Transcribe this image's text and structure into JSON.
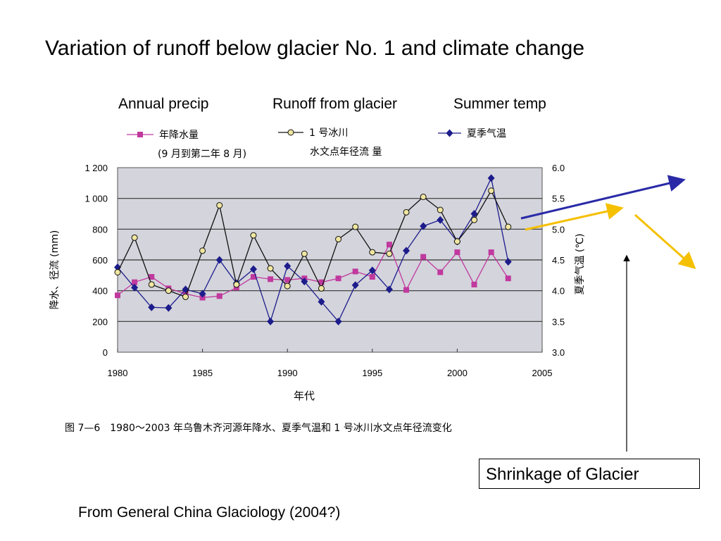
{
  "slide": {
    "title": "Variation of runoff below glacier No. 1 and climate change",
    "captions": [
      "Annual precip",
      "Runoff from glacier",
      "Summer temp"
    ],
    "box_label": "Shrinkage of Glacier",
    "source": "From General China Glaciology (2004?)"
  },
  "colors": {
    "plot_bg": "#d4d4dc",
    "precip": "#c0399e",
    "runoff_fill": "#f0e6a0",
    "runoff_line": "#111111",
    "temp": "#1c1c8c",
    "arrow_blue": "#2a2aa8",
    "arrow_yellow": "#f5c000"
  },
  "chart_data": {
    "type": "line",
    "xlabel": "年代",
    "ylabel_left": "降水、径流 (mm)",
    "ylabel_right": "夏季气温 (℃)",
    "xlim": [
      1980,
      2005
    ],
    "ylim_left": [
      0,
      1200
    ],
    "ylim_right": [
      3.0,
      6.0
    ],
    "x_ticks": [
      "1980",
      "1985",
      "1990",
      "1995",
      "2000",
      "2005"
    ],
    "y_left_ticks": [
      "0",
      "200",
      "400",
      "600",
      "800",
      "1 000",
      "1 200"
    ],
    "y_right_ticks": [
      "3.0",
      "3.5",
      "4.0",
      "4.5",
      "5.0",
      "5.5",
      "6.0"
    ],
    "grid": "horizontal",
    "caption": "图 7—6　1980～2003 年乌鲁木齐河源年降水、夏季气温和 1 号冰川水文点年径流变化",
    "x": [
      1980,
      1981,
      1982,
      1983,
      1984,
      1985,
      1986,
      1987,
      1988,
      1989,
      1990,
      1991,
      1992,
      1993,
      1994,
      1995,
      1996,
      1997,
      1998,
      1999,
      2000,
      2001,
      2002,
      2003
    ],
    "series": [
      {
        "name": "年降水量",
        "name2": "(9 月到第二年 8 月)",
        "axis": "left",
        "marker": "square",
        "values": [
          370,
          455,
          490,
          415,
          380,
          355,
          365,
          420,
          490,
          475,
          470,
          480,
          455,
          480,
          525,
          490,
          700,
          405,
          620,
          520,
          650,
          440,
          650,
          480
        ]
      },
      {
        "name": "1 号冰川",
        "name2": "水文点年径流 量",
        "axis": "left",
        "marker": "circle",
        "values": [
          520,
          745,
          440,
          400,
          360,
          660,
          955,
          440,
          760,
          545,
          430,
          640,
          415,
          735,
          815,
          650,
          640,
          910,
          1010,
          925,
          720,
          860,
          1050,
          815
        ]
      },
      {
        "name": "夏季气温",
        "axis": "right",
        "marker": "diamond",
        "values": [
          4.38,
          4.05,
          3.73,
          3.72,
          4.02,
          3.95,
          4.5,
          4.12,
          4.35,
          3.5,
          4.4,
          4.15,
          3.82,
          3.5,
          4.09,
          4.33,
          4.02,
          4.65,
          5.05,
          5.15,
          4.8,
          5.25,
          5.83,
          4.47
        ]
      }
    ]
  }
}
